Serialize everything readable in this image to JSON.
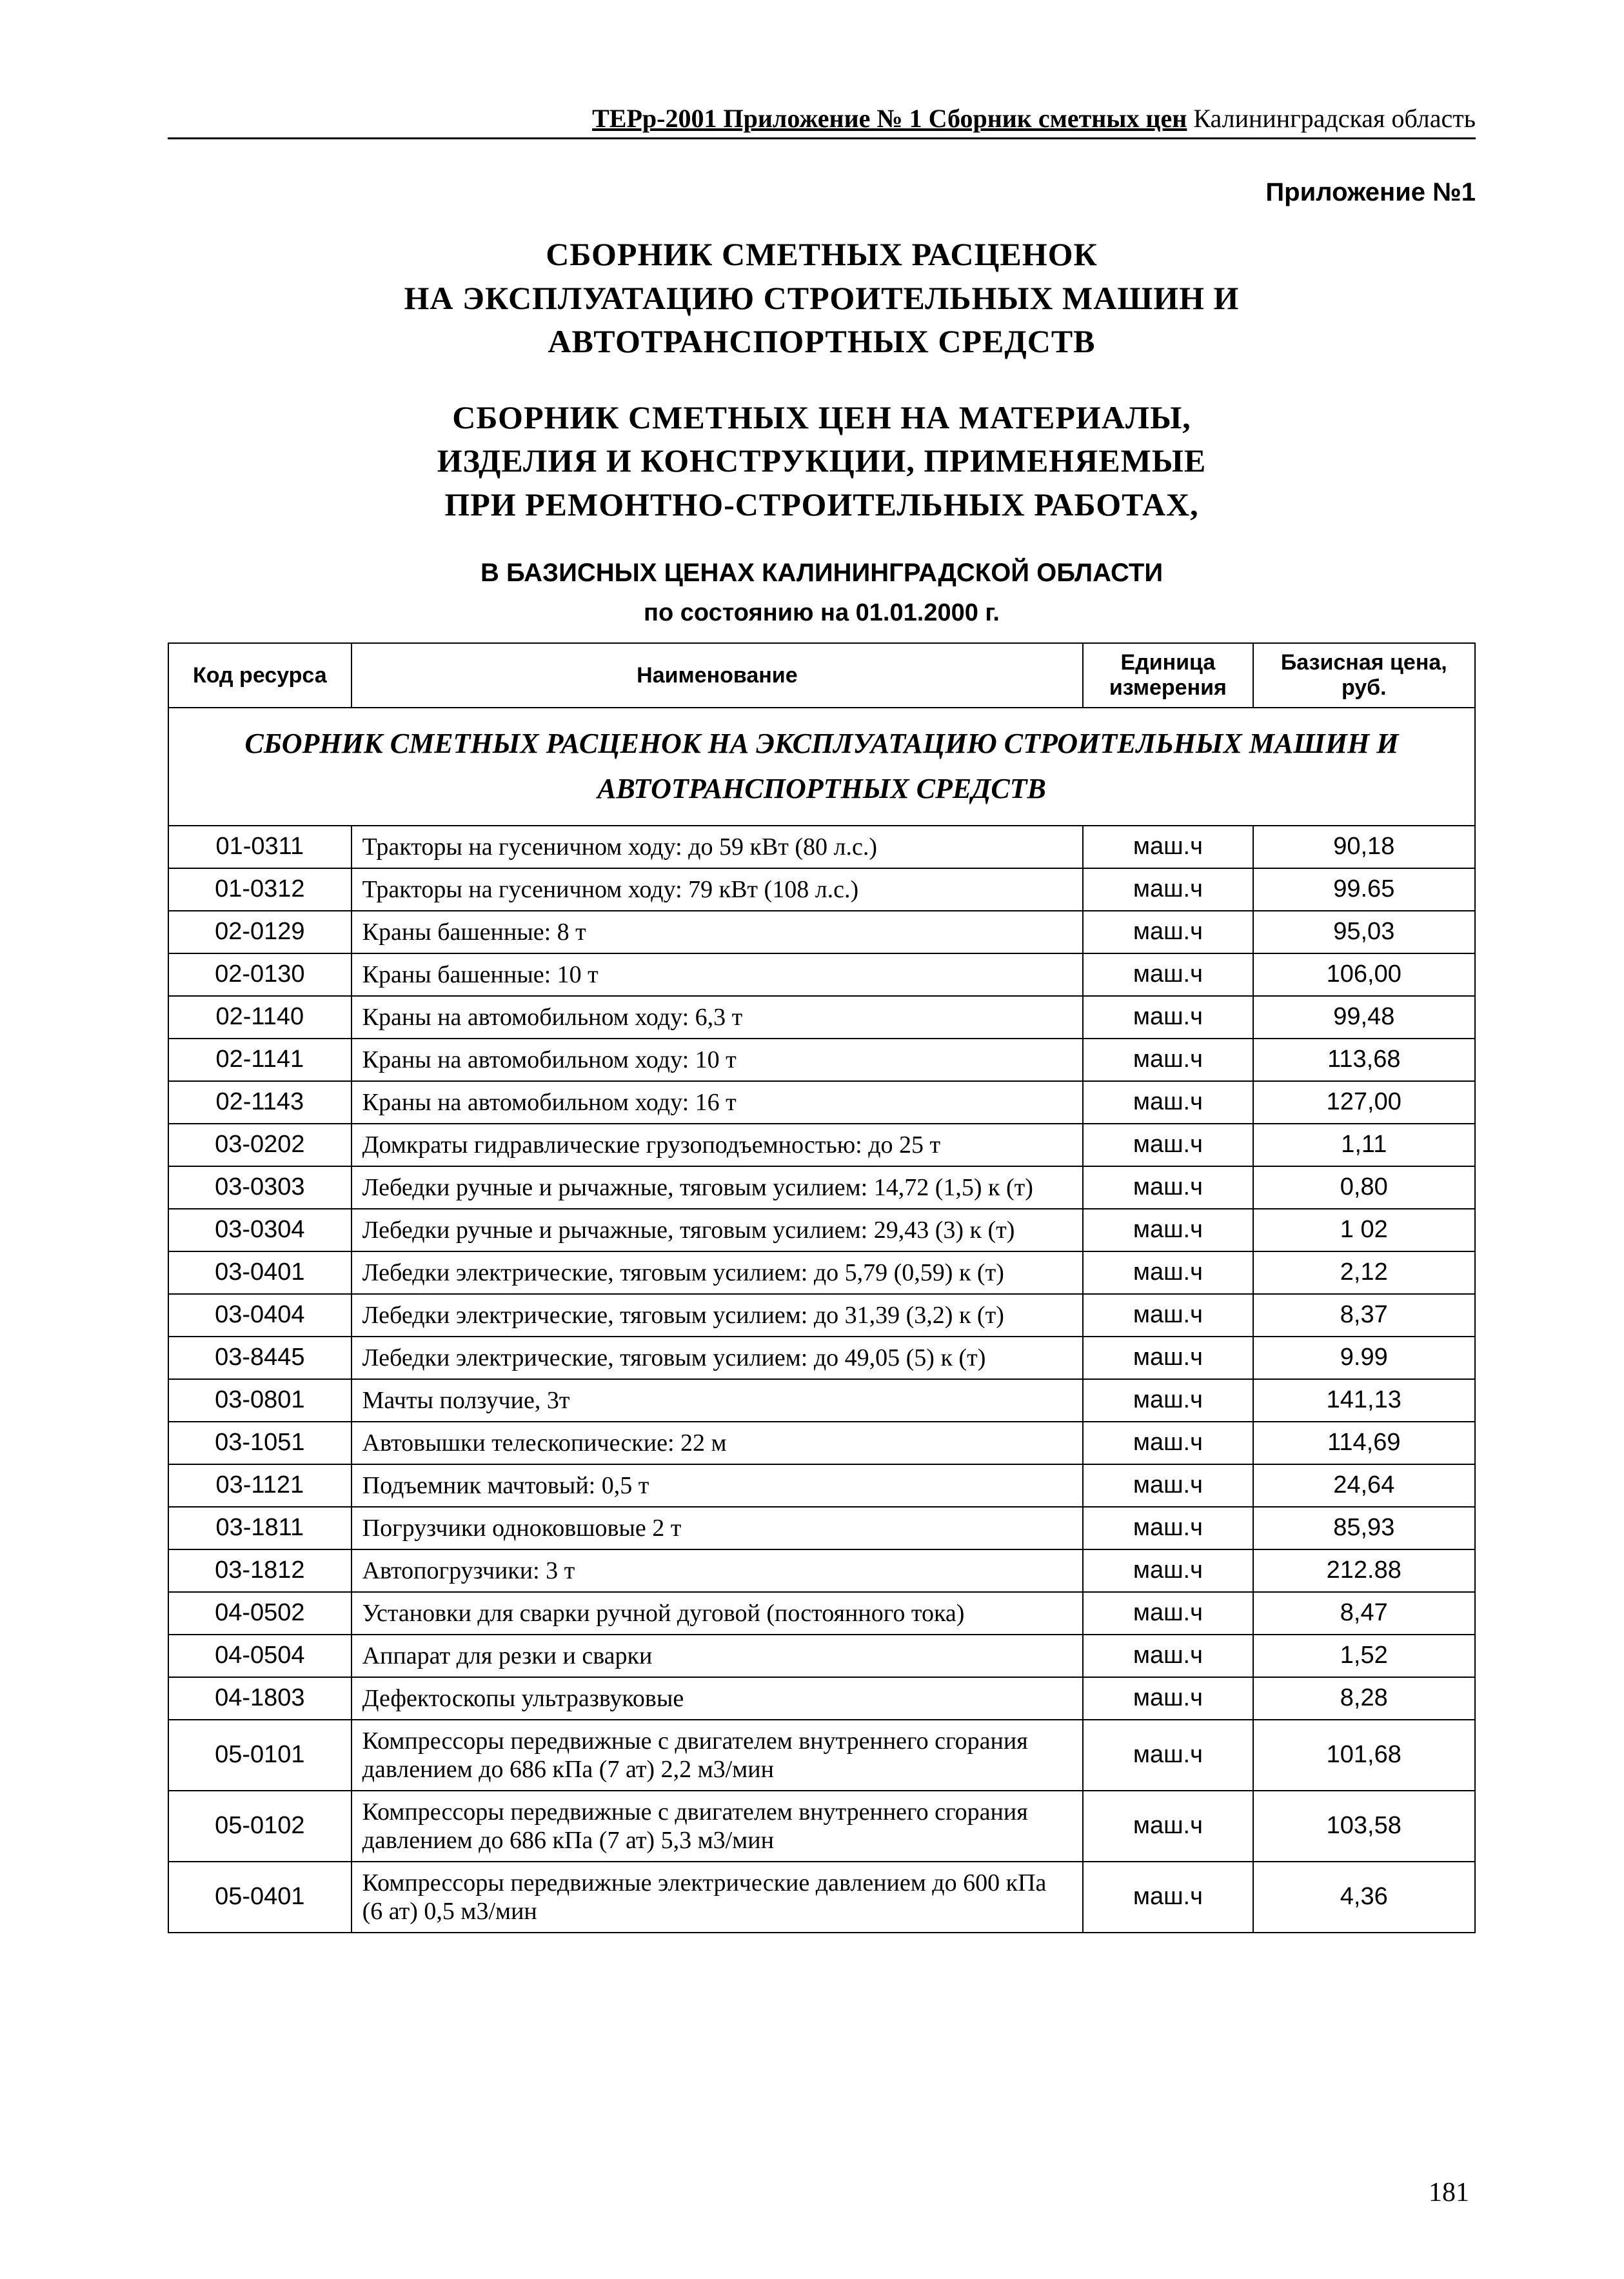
{
  "running_head": {
    "bold_part": "ТЕРр-2001 Приложение № 1 Сборник сметных цен",
    "plain_part": "  Калининградская область"
  },
  "appendix_label": "Приложение №1",
  "title_lines": [
    "СБОРНИК  СМЕТНЫХ  РАСЦЕНОК",
    "НА  ЭКСПЛУАТАЦИЮ  СТРОИТЕЛЬНЫХ  МАШИН  И",
    "АВТОТРАНСПОРТНЫХ  СРЕДСТВ"
  ],
  "subtitle_lines": [
    "СБОРНИК  СМЕТНЫХ  ЦЕН НА  МАТЕРИАЛЫ,",
    "ИЗДЕЛИЯ  И  КОНСТРУКЦИИ,  ПРИМЕНЯЕМЫЕ",
    "ПРИ  РЕМОНТНО-СТРОИТЕЛЬНЫХ  РАБОТАХ,"
  ],
  "base_prices_line": "В БАЗИСНЫХ ЦЕНАХ КАЛИНИНГРАДСКОЙ ОБЛАСТИ",
  "asof_line": "по состоянию на 01.01.2000 г.",
  "table": {
    "columns": [
      "Код ресурса",
      "Наименование",
      "Единица измерения",
      "Базисная цена, руб."
    ],
    "section_title": "СБОРНИК СМЕТНЫХ РАСЦЕНОК НА ЭКСПЛУАТАЦИЮ СТРОИТЕЛЬНЫХ МАШИН И АВТОТРАНСПОРТНЫХ СРЕДСТВ",
    "rows": [
      {
        "code": "01-0311",
        "name": "Тракторы на гусеничном ходу:  до 59 кВт  (80 л.с.)",
        "unit": "маш.ч",
        "price": "90,18"
      },
      {
        "code": "01-0312",
        "name": "Тракторы на гусеничном ходу:  79 кВт  (108 л.с.)",
        "unit": "маш.ч",
        "price": "99.65"
      },
      {
        "code": "02-0129",
        "name": "Краны башенные:  8 т",
        "unit": "маш.ч",
        "price": "95,03"
      },
      {
        "code": "02-0130",
        "name": "Краны башенные:  10 т",
        "unit": "маш.ч",
        "price": "106,00"
      },
      {
        "code": "02-1140",
        "name": "Краны на автомобильном ходу:  6,3 т",
        "unit": "маш.ч",
        "price": "99,48"
      },
      {
        "code": "02-1141",
        "name": "Краны на автомобильном ходу:  10 т",
        "unit": "маш.ч",
        "price": "113,68"
      },
      {
        "code": "02-1143",
        "name": "Краны на автомобильном ходу:  16 т",
        "unit": "маш.ч",
        "price": "127,00"
      },
      {
        "code": "03-0202",
        "name": "Домкраты гидравлические грузоподъемностью:  до  25 т",
        "unit": "маш.ч",
        "price": "1,11"
      },
      {
        "code": "03-0303",
        "name": "Лебедки ручные и рычажные, тяговым усилием:  14,72 (1,5) к (т)",
        "unit": "маш.ч",
        "price": "0,80"
      },
      {
        "code": "03-0304",
        "name": "Лебедки ручные и рычажные, тяговым усилием:  29,43 (3) к (т)",
        "unit": "маш.ч",
        "price": "1 02"
      },
      {
        "code": "03-0401",
        "name": "Лебедки электрические, тяговым усилием:  до  5,79 (0,59) к (т)",
        "unit": "маш.ч",
        "price": "2,12"
      },
      {
        "code": "03-0404",
        "name": "Лебедки электрические, тяговым усилием:  до  31,39 (3,2) к (т)",
        "unit": "маш.ч",
        "price": "8,37"
      },
      {
        "code": "03-8445",
        "name": "Лебедки электрические, тяговым усилием:  до  49,05 (5) к (т)",
        "unit": "маш.ч",
        "price": "9.99"
      },
      {
        "code": "03-0801",
        "name": "Мачты ползучие, 3т",
        "unit": "маш.ч",
        "price": "141,13"
      },
      {
        "code": "03-1051",
        "name": "Автовышки телескопические:  22 м",
        "unit": "маш.ч",
        "price": "114,69"
      },
      {
        "code": "03-1121",
        "name": "Подъемник мачтовый:  0,5 т",
        "unit": "маш.ч",
        "price": "24,64"
      },
      {
        "code": "03-1811",
        "name": "Погрузчики  одноковшовые 2 т",
        "unit": "маш.ч",
        "price": "85,93"
      },
      {
        "code": "03-1812",
        "name": "Автопогрузчики:  3 т",
        "unit": "маш.ч",
        "price": "212.88"
      },
      {
        "code": "04-0502",
        "name": "Установки для сварки ручной дуговой (постоянного тока)",
        "unit": "маш.ч",
        "price": "8,47"
      },
      {
        "code": "04-0504",
        "name": "Аппарат для резки и сварки",
        "unit": "маш.ч",
        "price": "1,52"
      },
      {
        "code": "04-1803",
        "name": "Дефектоскопы ультразвуковые",
        "unit": "маш.ч",
        "price": "8,28"
      },
      {
        "code": "05-0101",
        "name": "Компрессоры передвижные с двигателем внутреннего сгорания давлением до 686 кПа  (7 ат)  2,2 м3/мин",
        "unit": "маш.ч",
        "price": "101,68"
      },
      {
        "code": "05-0102",
        "name": "Компрессоры передвижные с двигателем внутреннего сгорания давлением до 686 кПа  (7 ат)  5,3 м3/мин",
        "unit": "маш.ч",
        "price": "103,58"
      },
      {
        "code": "05-0401",
        "name": "Компрессоры передвижные электрические давлением до 600 кПа  (6 ат)  0,5 м3/мин",
        "unit": "маш.ч",
        "price": "4,36"
      }
    ]
  },
  "page_number": "181"
}
